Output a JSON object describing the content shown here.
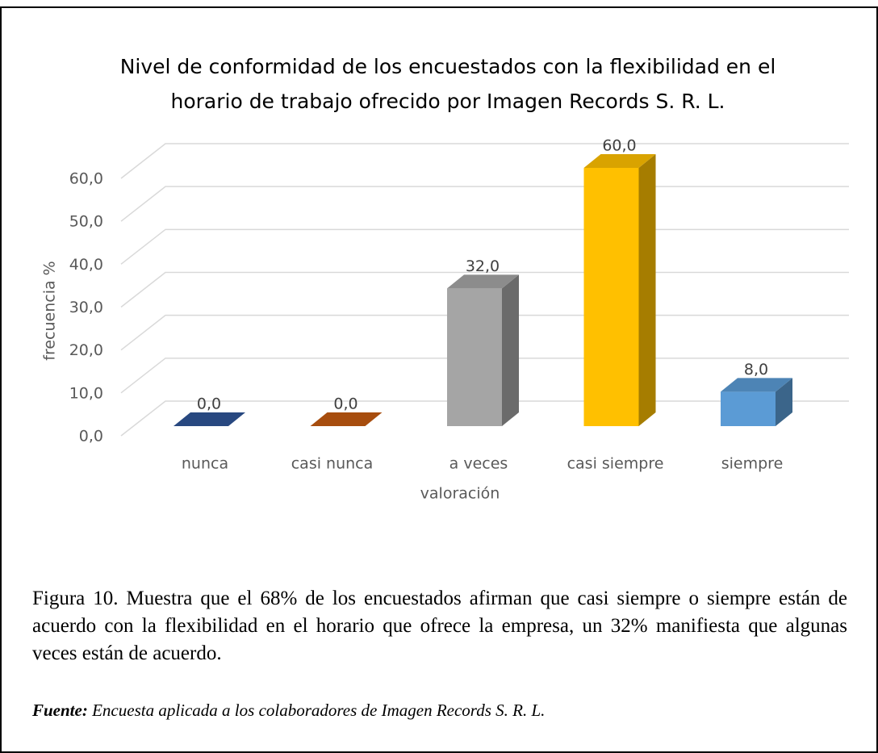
{
  "chart_data": {
    "type": "bar3d",
    "title": "Nivel de conformidad de los encuestados con la flexibilidad en el horario de trabajo ofrecido por Imagen Records S. R. L.",
    "x_label": "valoración",
    "y_label": "frecuencia %",
    "categories": [
      "nunca",
      "casi nunca",
      "a veces",
      "casi siempre",
      "siempre"
    ],
    "values": [
      0,
      0,
      32,
      60,
      8
    ],
    "value_labels": [
      "0,0",
      "0,0",
      "32,0",
      "60,0",
      "8,0"
    ],
    "colors": [
      "#2f5597",
      "#c55a11",
      "#a5a5a5",
      "#ffc000",
      "#5b9bd5"
    ],
    "ylim": [
      0,
      60
    ],
    "yticks": [
      {
        "value": 0,
        "label": "0,0"
      },
      {
        "value": 10,
        "label": "10,0"
      },
      {
        "value": 20,
        "label": "20,0"
      },
      {
        "value": 30,
        "label": "30,0"
      },
      {
        "value": 40,
        "label": "40,0"
      },
      {
        "value": 50,
        "label": "50,0"
      },
      {
        "value": 60,
        "label": "60,0"
      }
    ],
    "grid": true
  },
  "caption": "Figura 10. Muestra que el 68% de los encuestados afirman que casi siempre o siempre están de acuerdo con la flexibilidad en el horario que ofrece la empresa, un 32% manifiesta que algunas veces están de acuerdo.",
  "source": {
    "label": "Fuente:",
    "text": "Encuesta aplicada a los colaboradores de Imagen Records S. R. L."
  }
}
